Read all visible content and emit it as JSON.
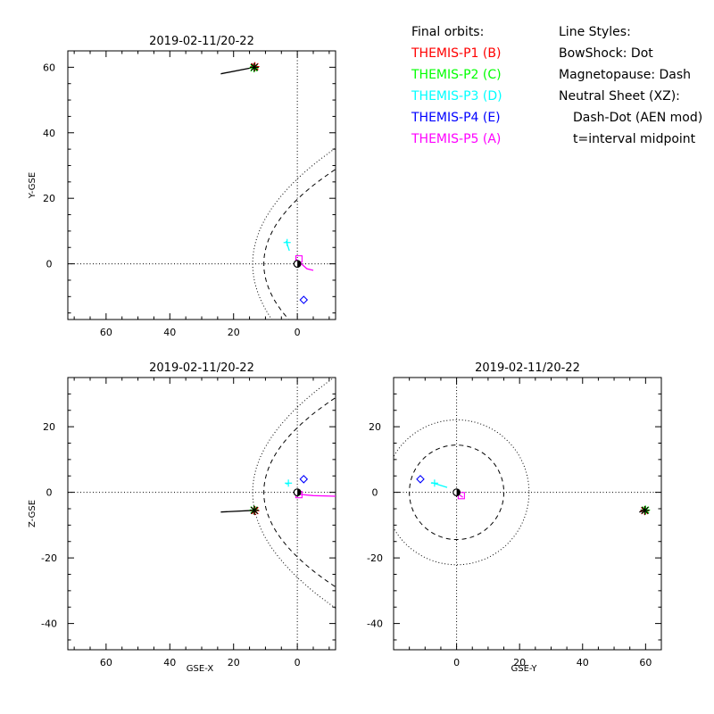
{
  "legend": {
    "orbits_title": "Final orbits:",
    "probes": [
      {
        "label": "THEMIS-P1 (B)",
        "color": "#ff0000"
      },
      {
        "label": "THEMIS-P2 (C)",
        "color": "#00ff00"
      },
      {
        "label": "THEMIS-P3 (D)",
        "color": "#00ffff"
      },
      {
        "label": "THEMIS-P4 (E)",
        "color": "#0000ff"
      },
      {
        "label": "THEMIS-P5 (A)",
        "color": "#ff00ff"
      }
    ],
    "styles_title": "Line Styles:",
    "styles": [
      "BowShock: Dot",
      "Magnetopause: Dash",
      "Neutral Sheet (XZ):",
      "Dash-Dot (AEN mod)",
      "t=interval midpoint"
    ]
  },
  "chart_data": [
    {
      "type": "line",
      "panel": "xy",
      "title": "2019-02-11/20-22",
      "xlabel": "",
      "ylabel": "Y-GSE",
      "xlim": [
        72,
        -12
      ],
      "ylim": [
        -17,
        65
      ],
      "xticks": [
        60,
        40,
        20,
        0
      ],
      "yticks": [
        0,
        20,
        40,
        60
      ],
      "tracks": [
        {
          "color": "#000000",
          "points": [
            [
              24,
              58
            ],
            [
              13.5,
              60
            ]
          ]
        },
        {
          "color": "#ff00ff",
          "points": [
            [
              0.5,
              1.5
            ],
            [
              -3,
              -1.5
            ],
            [
              -5,
              -2
            ]
          ]
        },
        {
          "color": "#00ffff",
          "points": [
            [
              3.5,
              7
            ],
            [
              2.5,
              4
            ]
          ]
        }
      ],
      "markers": [
        {
          "color": "#ff0000",
          "shape": "star",
          "x": 13.3,
          "y": 60.2
        },
        {
          "color": "#00ff00",
          "shape": "star",
          "x": 13.6,
          "y": 59.8
        },
        {
          "color": "#000000",
          "shape": "star",
          "x": 13.5,
          "y": 60
        },
        {
          "color": "#00ffff",
          "shape": "plus",
          "x": 3.2,
          "y": 6.5
        },
        {
          "color": "#0000ff",
          "shape": "diamond",
          "x": -2,
          "y": -11
        },
        {
          "color": "#ff00ff",
          "shape": "square",
          "x": -0.5,
          "y": 1.5
        },
        {
          "color": "#000000",
          "shape": "earth",
          "x": 0,
          "y": 0
        }
      ]
    },
    {
      "type": "line",
      "panel": "xz",
      "title": "2019-02-11/20-22",
      "xlabel": "GSE-X",
      "ylabel": "Z-GSE",
      "xlim": [
        72,
        -12
      ],
      "ylim": [
        -48,
        35
      ],
      "xticks": [
        60,
        40,
        20,
        0
      ],
      "yticks": [
        -40,
        -20,
        0,
        20
      ],
      "tracks": [
        {
          "color": "#000000",
          "points": [
            [
              24,
              -6
            ],
            [
              13.5,
              -5.5
            ]
          ]
        },
        {
          "color": "#ff00ff",
          "points": [
            [
              0.5,
              -0.5
            ],
            [
              -5,
              -1
            ],
            [
              -12,
              -1.2
            ]
          ]
        },
        {
          "color": "#00ffff",
          "points": [
            [
              3.5,
              2.5
            ],
            [
              2.5,
              2.8
            ]
          ]
        }
      ],
      "markers": [
        {
          "color": "#ff0000",
          "shape": "star",
          "x": 13.3,
          "y": -5.6
        },
        {
          "color": "#00ff00",
          "shape": "star",
          "x": 13.6,
          "y": -5.4
        },
        {
          "color": "#000000",
          "shape": "star",
          "x": 13.5,
          "y": -5.5
        },
        {
          "color": "#00ffff",
          "shape": "plus",
          "x": 2.8,
          "y": 2.8
        },
        {
          "color": "#0000ff",
          "shape": "diamond",
          "x": -2,
          "y": 4
        },
        {
          "color": "#ff00ff",
          "shape": "square",
          "x": -0.5,
          "y": -0.7
        },
        {
          "color": "#000000",
          "shape": "earth",
          "x": 0,
          "y": 0
        }
      ]
    },
    {
      "type": "line",
      "panel": "yz",
      "title": "2019-02-11/20-22",
      "xlabel": "GSE-Y",
      "ylabel": "",
      "xlim": [
        -20,
        65
      ],
      "ylim": [
        -48,
        35
      ],
      "xticks": [
        0,
        20,
        40,
        60
      ],
      "yticks": [
        -40,
        -20,
        0,
        20
      ],
      "tracks": [
        {
          "color": "#000000",
          "points": [
            [
              58,
              -6
            ],
            [
              60,
              -5.5
            ]
          ]
        },
        {
          "color": "#ff00ff",
          "points": [
            [
              0.5,
              -0.5
            ],
            [
              2,
              -1.5
            ]
          ]
        },
        {
          "color": "#00ffff",
          "points": [
            [
              -8,
              3
            ],
            [
              -3,
              1.5
            ]
          ]
        }
      ],
      "markers": [
        {
          "color": "#ff0000",
          "shape": "star",
          "x": 59.7,
          "y": -5.6
        },
        {
          "color": "#00ff00",
          "shape": "star",
          "x": 60,
          "y": -5.4
        },
        {
          "color": "#000000",
          "shape": "star",
          "x": 59.8,
          "y": -5.5
        },
        {
          "color": "#00ffff",
          "shape": "plus",
          "x": -7,
          "y": 2.8
        },
        {
          "color": "#0000ff",
          "shape": "diamond",
          "x": -11.5,
          "y": 4
        },
        {
          "color": "#ff00ff",
          "shape": "square",
          "x": 1.5,
          "y": -1
        },
        {
          "color": "#000000",
          "shape": "earth",
          "x": 0,
          "y": 0
        }
      ]
    }
  ]
}
